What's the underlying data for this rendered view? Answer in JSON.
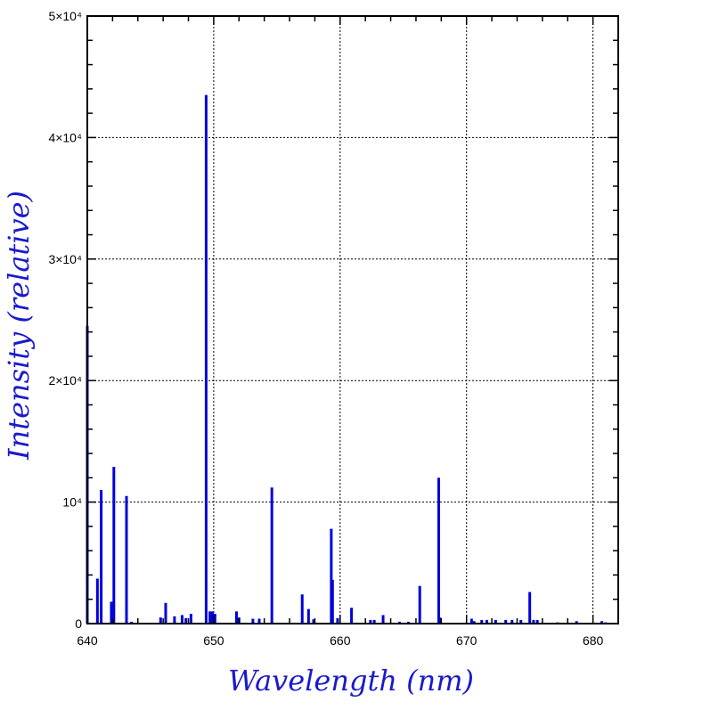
{
  "chart_data": {
    "type": "bar",
    "xlabel": "Wavelength (nm)",
    "ylabel": "Intensity (relative)",
    "xlim": [
      640,
      682
    ],
    "ylim": [
      0,
      50000
    ],
    "grid": true,
    "colors": {
      "series": "#0000dd",
      "axis_titles": "#1a1acc",
      "grid": "#000000"
    },
    "x_ticks": [
      {
        "value": 640,
        "label": "640"
      },
      {
        "value": 650,
        "label": "650"
      },
      {
        "value": 660,
        "label": "660"
      },
      {
        "value": 670,
        "label": "670"
      },
      {
        "value": 680,
        "label": "680"
      }
    ],
    "y_ticks": [
      {
        "value": 0,
        "label": "0"
      },
      {
        "value": 10000,
        "label": "10⁴"
      },
      {
        "value": 20000,
        "label": "2×10⁴"
      },
      {
        "value": 30000,
        "label": "3×10⁴"
      },
      {
        "value": 40000,
        "label": "4×10⁴"
      },
      {
        "value": 50000,
        "label": "5×10⁴"
      }
    ],
    "series": [
      {
        "x": [
          640.0,
          640.8,
          641.1,
          641.9,
          642.1,
          643.1,
          643.5,
          645.8,
          646.2,
          646.9,
          647.5,
          647.8,
          648.2,
          649.4,
          649.7,
          649.9,
          650.1,
          651.8,
          652.0,
          653.1,
          653.6,
          654.6,
          657.0,
          657.5,
          657.9,
          659.3,
          659.4,
          659.8,
          660.9,
          662.4,
          662.7,
          663.4,
          664.7,
          665.4,
          666.3,
          667.8,
          667.9,
          670.4,
          670.6,
          671.2,
          671.6,
          672.3,
          673.1,
          673.6,
          674.3,
          675.0,
          675.3,
          675.6,
          677.2,
          678.7,
          680.7,
          681.0
        ],
        "values": [
          24500,
          3700,
          11000,
          1800,
          12900,
          10500,
          150,
          500,
          1700,
          600,
          700,
          450,
          800,
          43500,
          1000,
          1000,
          800,
          1000,
          500,
          400,
          400,
          11200,
          2400,
          1200,
          350,
          7800,
          3600,
          450,
          1300,
          300,
          300,
          700,
          150,
          150,
          3100,
          12000,
          500,
          400,
          200,
          300,
          300,
          300,
          300,
          300,
          300,
          2600,
          300,
          300,
          100,
          200,
          200,
          100
        ]
      }
    ]
  }
}
